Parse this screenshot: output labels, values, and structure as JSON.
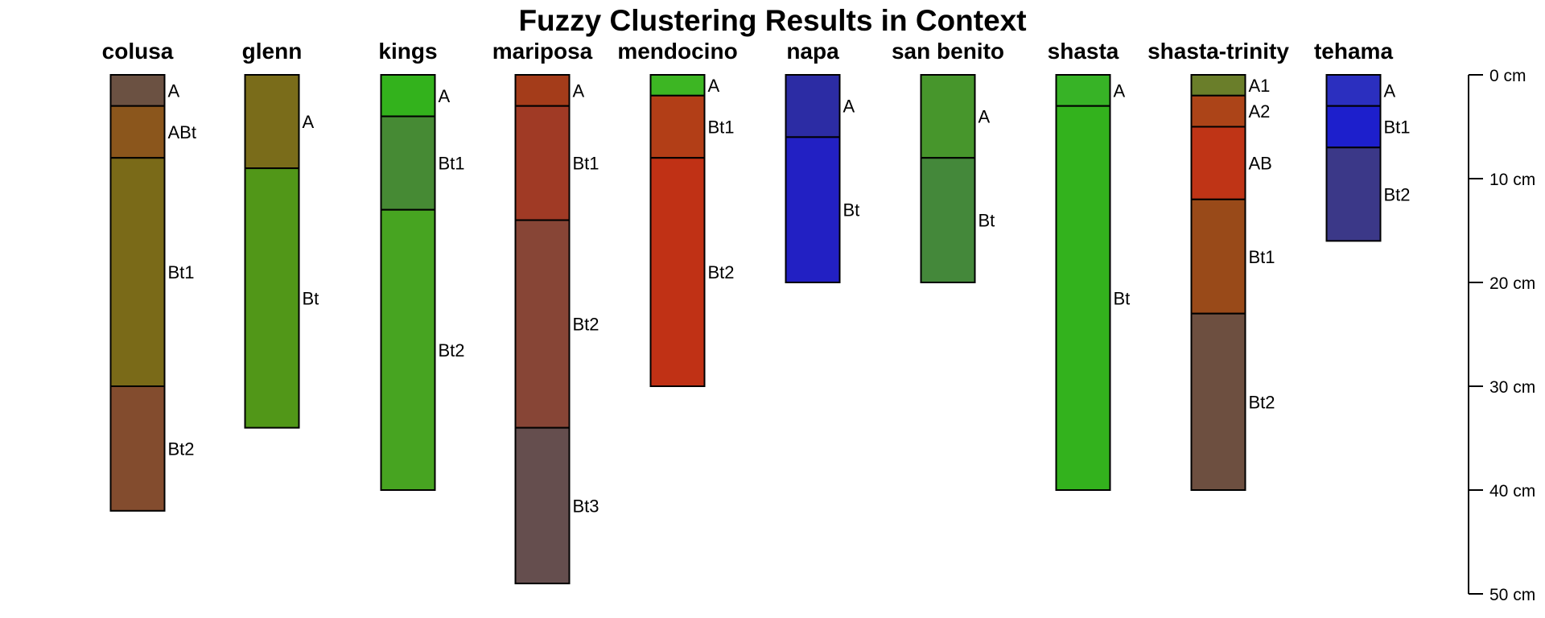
{
  "title": "Fuzzy Clustering Results in Context",
  "depth_axis": {
    "unit": "cm",
    "ticks": [
      0,
      10,
      20,
      30,
      40,
      50
    ],
    "tick_labels": [
      "0 cm",
      "10 cm",
      "20 cm",
      "30 cm",
      "40 cm",
      "50 cm"
    ],
    "range": [
      0,
      50
    ],
    "side": "right"
  },
  "profiles": [
    {
      "name": "colusa",
      "horizons": [
        {
          "label": "A",
          "top": 0,
          "bottom": 3,
          "color": "#6b5142"
        },
        {
          "label": "ABt",
          "top": 3,
          "bottom": 8,
          "color": "#8b561c"
        },
        {
          "label": "Bt1",
          "top": 8,
          "bottom": 30,
          "color": "#7a6a18"
        },
        {
          "label": "Bt2",
          "top": 30,
          "bottom": 42,
          "color": "#834c2e"
        }
      ]
    },
    {
      "name": "glenn",
      "horizons": [
        {
          "label": "A",
          "top": 0,
          "bottom": 9,
          "color": "#7a6c1a"
        },
        {
          "label": "Bt",
          "top": 9,
          "bottom": 34,
          "color": "#519718"
        }
      ]
    },
    {
      "name": "kings",
      "horizons": [
        {
          "label": "A",
          "top": 0,
          "bottom": 4,
          "color": "#33b21c"
        },
        {
          "label": "Bt1",
          "top": 4,
          "bottom": 13,
          "color": "#468a34"
        },
        {
          "label": "Bt2",
          "top": 13,
          "bottom": 40,
          "color": "#47a421"
        }
      ]
    },
    {
      "name": "mariposa",
      "horizons": [
        {
          "label": "A",
          "top": 0,
          "bottom": 3,
          "color": "#a43c1a"
        },
        {
          "label": "Bt1",
          "top": 3,
          "bottom": 14,
          "color": "#a03a25"
        },
        {
          "label": "Bt2",
          "top": 14,
          "bottom": 34,
          "color": "#874536"
        },
        {
          "label": "Bt3",
          "top": 34,
          "bottom": 49,
          "color": "#654e4e"
        }
      ]
    },
    {
      "name": "mendocino",
      "horizons": [
        {
          "label": "A",
          "top": 0,
          "bottom": 2,
          "color": "#3db623"
        },
        {
          "label": "Bt1",
          "top": 2,
          "bottom": 8,
          "color": "#b23e17"
        },
        {
          "label": "Bt2",
          "top": 8,
          "bottom": 30,
          "color": "#c03115"
        }
      ]
    },
    {
      "name": "napa",
      "horizons": [
        {
          "label": "A",
          "top": 0,
          "bottom": 6,
          "color": "#2c2ca4"
        },
        {
          "label": "Bt",
          "top": 6,
          "bottom": 20,
          "color": "#2220c3"
        }
      ]
    },
    {
      "name": "san benito",
      "horizons": [
        {
          "label": "A",
          "top": 0,
          "bottom": 8,
          "color": "#47962c"
        },
        {
          "label": "Bt",
          "top": 8,
          "bottom": 20,
          "color": "#44883a"
        }
      ]
    },
    {
      "name": "shasta",
      "horizons": [
        {
          "label": "A",
          "top": 0,
          "bottom": 3,
          "color": "#37b326"
        },
        {
          "label": "Bt",
          "top": 3,
          "bottom": 40,
          "color": "#33b21d"
        }
      ]
    },
    {
      "name": "shasta-trinity",
      "horizons": [
        {
          "label": "A1",
          "top": 0,
          "bottom": 2,
          "color": "#6a7e2a"
        },
        {
          "label": "A2",
          "top": 2,
          "bottom": 5,
          "color": "#ac4418"
        },
        {
          "label": "AB",
          "top": 5,
          "bottom": 12,
          "color": "#bf3416"
        },
        {
          "label": "Bt1",
          "top": 12,
          "bottom": 23,
          "color": "#994a19"
        },
        {
          "label": "Bt2",
          "top": 23,
          "bottom": 40,
          "color": "#6d4f40"
        }
      ]
    },
    {
      "name": "tehama",
      "horizons": [
        {
          "label": "A",
          "top": 0,
          "bottom": 3,
          "color": "#2b2fbf"
        },
        {
          "label": "Bt1",
          "top": 3,
          "bottom": 7,
          "color": "#1d1fcc"
        },
        {
          "label": "Bt2",
          "top": 7,
          "bottom": 16,
          "color": "#3b3888"
        }
      ]
    }
  ]
}
